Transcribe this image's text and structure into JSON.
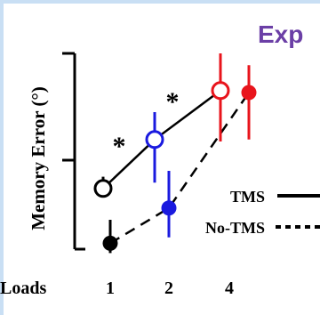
{
  "chart_data": {
    "type": "line",
    "title": "Exp",
    "ylabel": "Memory Error (°)",
    "xlabel": "Loads",
    "categories": [
      "1",
      "2",
      "4"
    ],
    "ylim": [
      0,
      100
    ],
    "series": [
      {
        "name": "TMS",
        "style": "solid",
        "marker": "open",
        "values": [
          31,
          56,
          81
        ],
        "err": [
          [
            28,
            37
          ],
          [
            34,
            70
          ],
          [
            55,
            100
          ]
        ],
        "colors": [
          "#000000",
          "#1a1adf",
          "#e8141c"
        ]
      },
      {
        "name": "No-TMS",
        "style": "dashed",
        "marker": "filled",
        "values": [
          3,
          21,
          80
        ],
        "err": [
          [
            -2,
            15
          ],
          [
            6,
            40
          ],
          [
            56,
            94
          ]
        ],
        "colors": [
          "#000000",
          "#1a1adf",
          "#e8141c"
        ]
      }
    ],
    "annotations": [
      "*",
      "*"
    ],
    "grid": false,
    "legend_position": "right"
  },
  "ui": {
    "frame_color": "#c9dff4"
  }
}
